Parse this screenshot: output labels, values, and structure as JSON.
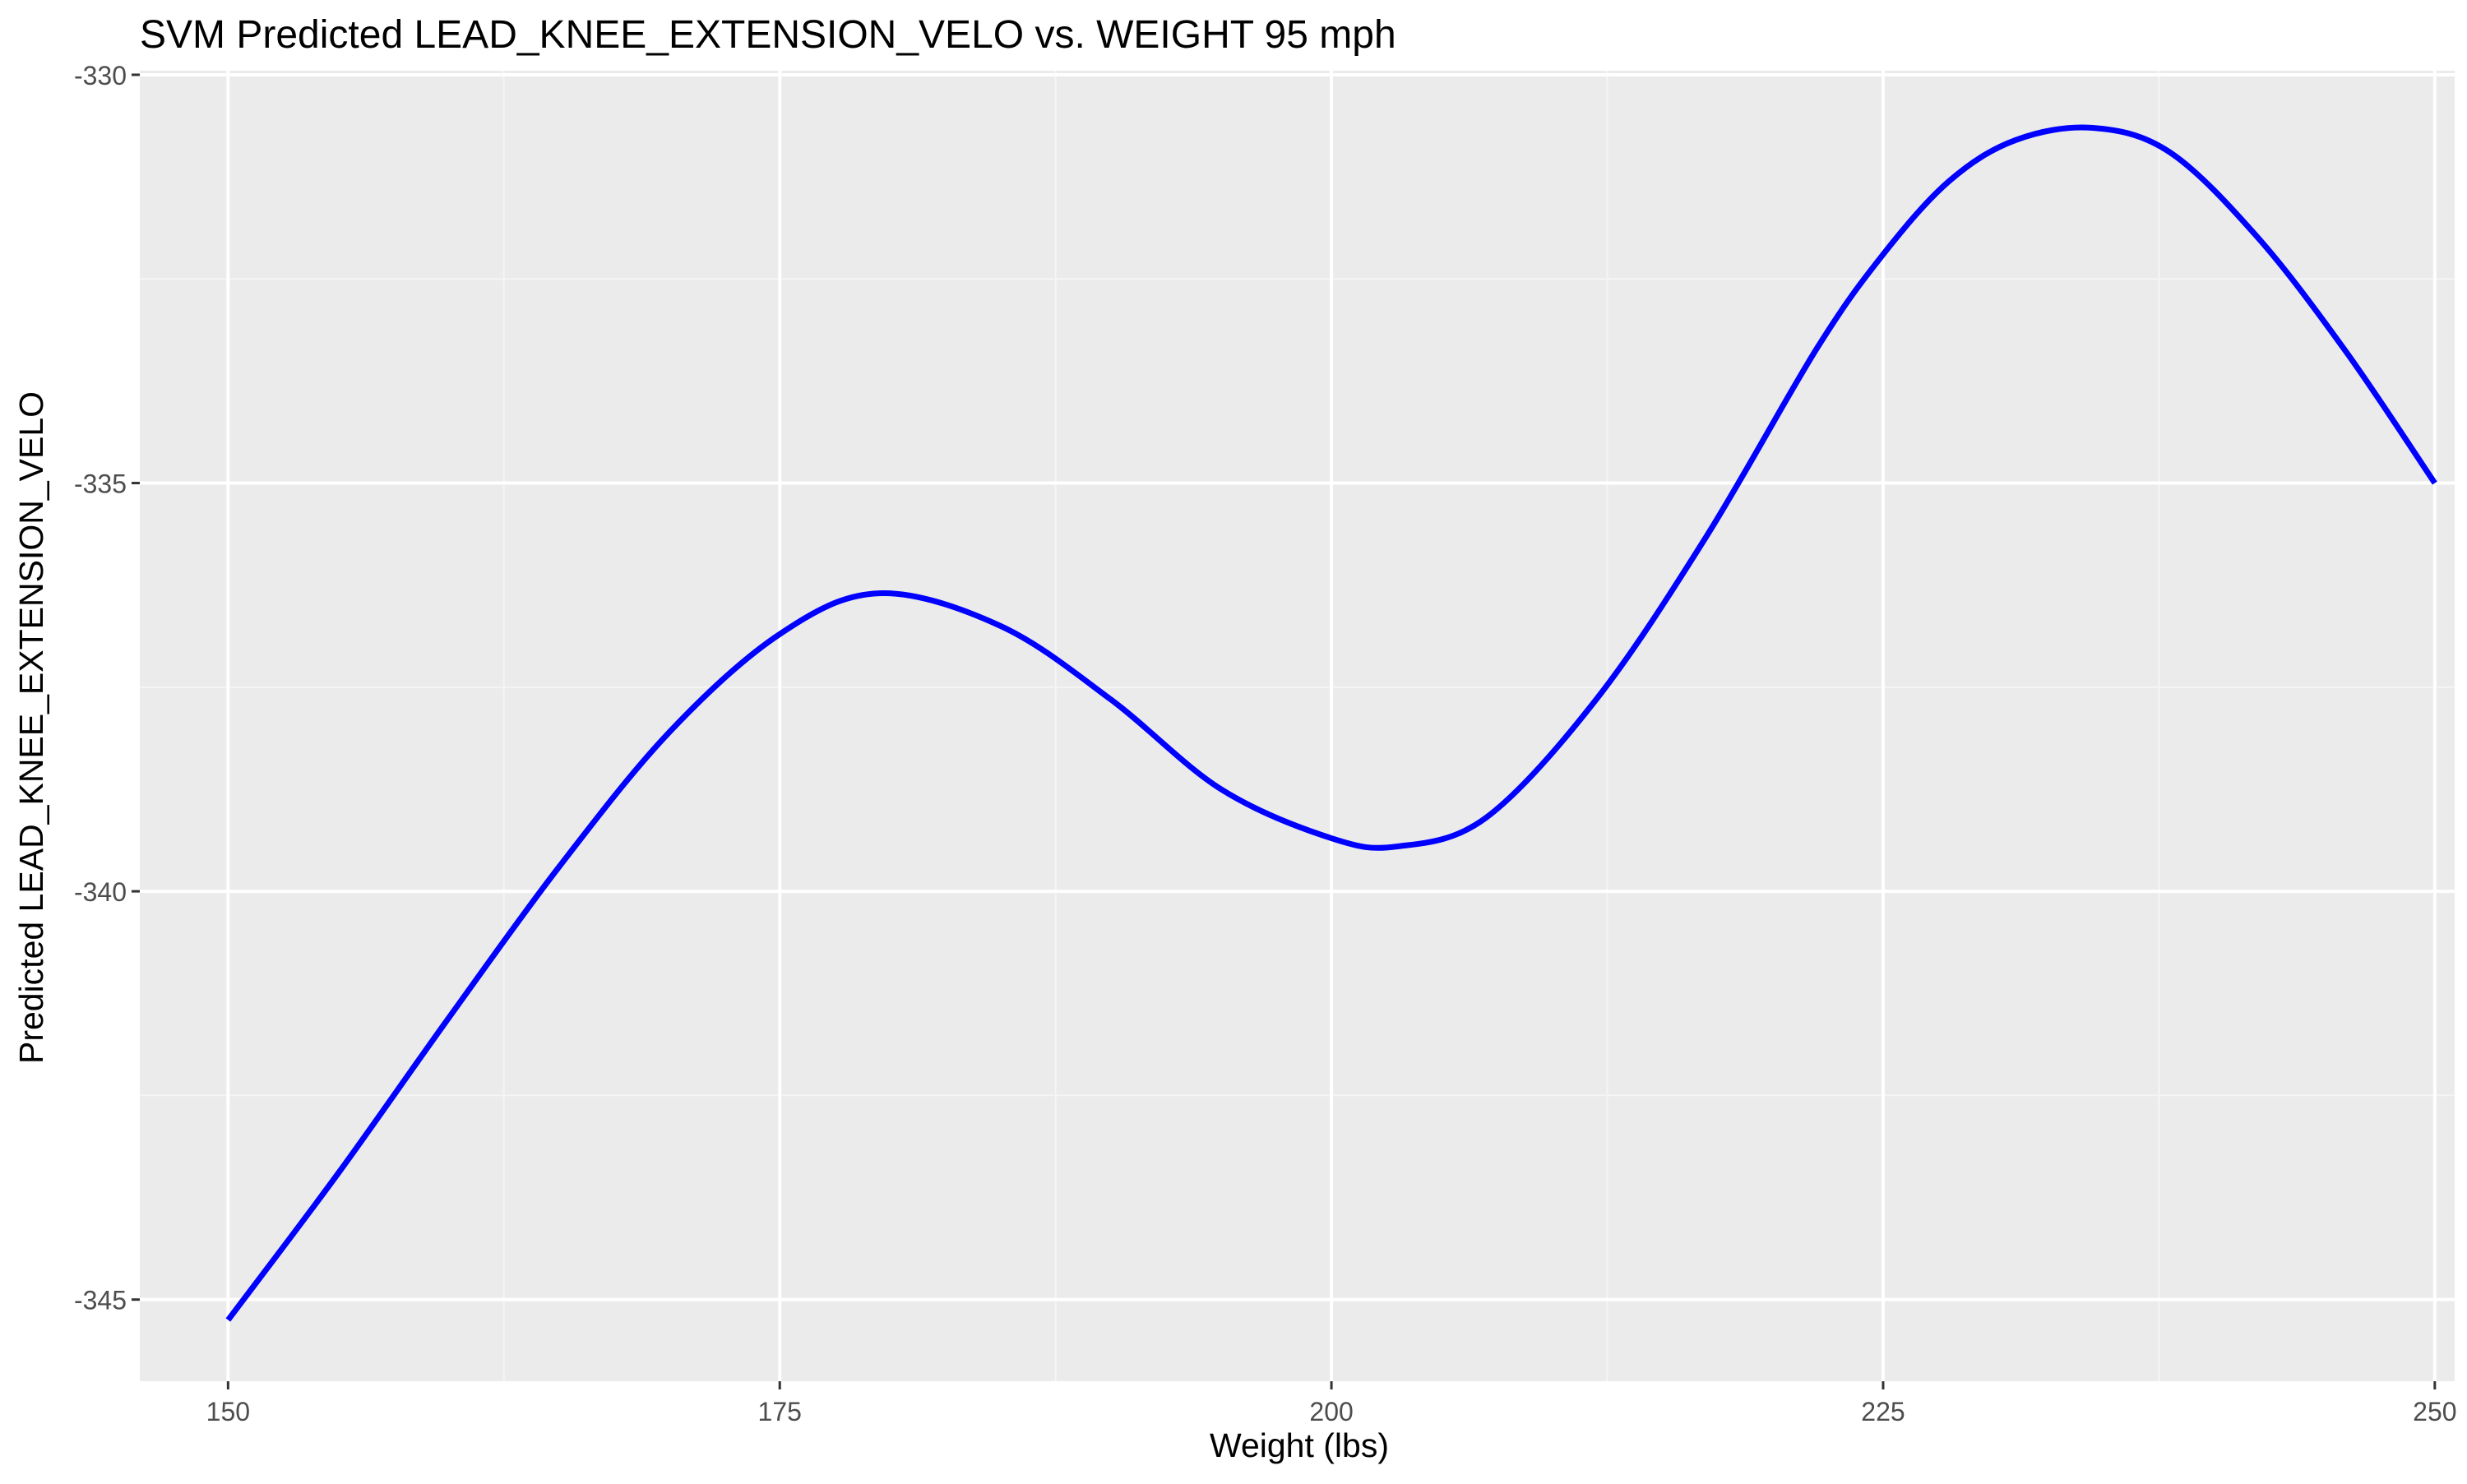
{
  "chart_data": {
    "type": "line",
    "title": "SVM Predicted LEAD_KNEE_EXTENSION_VELO vs. WEIGHT 95 mph",
    "xlabel": "Weight (lbs)",
    "ylabel": "Predicted LEAD_KNEE_EXTENSION_VELO",
    "xlim": [
      146,
      250.9
    ],
    "ylim": [
      -346,
      -329.95
    ],
    "x_ticks": [
      150,
      175,
      200,
      225,
      250
    ],
    "x_tick_labels": [
      "150",
      "175",
      "200",
      "225",
      "250"
    ],
    "y_ticks": [
      -330,
      -335,
      -340,
      -345
    ],
    "y_tick_labels": [
      "-330",
      "-335",
      "-340",
      "-345"
    ],
    "x_minor_ticks": [
      162.5,
      187.5,
      212.5,
      237.5
    ],
    "y_minor_ticks": [
      -332.5,
      -337.5,
      -342.5
    ],
    "grid": true,
    "legend": "none",
    "series": [
      {
        "color": "#0000ff",
        "x": [
          150,
          155,
          160,
          165,
          170,
          175,
          179.5,
          185,
          190,
          195,
          200,
          203,
          207,
          212,
          217,
          222,
          225,
          228,
          231,
          234.5,
          238,
          242,
          246,
          250
        ],
        "values": [
          -345.25,
          -343.45,
          -341.55,
          -339.7,
          -338.05,
          -336.85,
          -336.35,
          -336.75,
          -337.65,
          -338.75,
          -339.35,
          -339.45,
          -339.1,
          -337.65,
          -335.65,
          -333.35,
          -332.2,
          -331.3,
          -330.8,
          -330.65,
          -330.95,
          -332.0,
          -333.4,
          -335.0
        ]
      }
    ],
    "colors": {
      "panel_background": "#ebebeb",
      "grid_major": "#ffffff",
      "grid_minor": "#f5f5f5",
      "axis_text": "#4d4d4d",
      "title_text": "#000000",
      "line": "#0000ff"
    }
  }
}
